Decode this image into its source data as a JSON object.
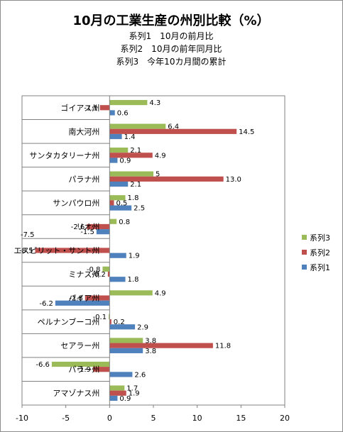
{
  "chart_data": {
    "type": "bar",
    "orientation": "horizontal",
    "title": "10月の工業生産の州別比較（%）",
    "subtitle_lines": [
      "系列1　10月の前月比",
      "系列2　10月の前年同月比",
      "系列3　今年10カ月間の累計"
    ],
    "categories": [
      "ゴイアス州",
      "南大河州",
      "サンタカタリーナ州",
      "パラナ州",
      "サンパウロ州",
      "リオ州",
      "エスピリット・サント州",
      "ミナス州",
      "バイア州",
      "ペルナンブーコ州",
      "セアラー州",
      "パラー州",
      "アマゾナス州"
    ],
    "series": [
      {
        "name": "系列3",
        "color": "#9BBB59",
        "values": [
          4.3,
          6.4,
          2.1,
          5,
          1.8,
          0.8,
          null,
          -0.8,
          4.9,
          -0.1,
          3.8,
          -6.6,
          1.7
        ],
        "labels": [
          "4.3",
          "6.4",
          "2.1",
          "5",
          "1.8",
          "0.8",
          "",
          "-0.8",
          "4.9",
          "-0.1",
          "3.8",
          "-6.6",
          "1.7"
        ]
      },
      {
        "name": "系列2",
        "color": "#C0504D",
        "values": [
          -1.1,
          14.5,
          4.9,
          13.0,
          0.5,
          -2.6,
          -8.5,
          -0.2,
          -2.8,
          0.2,
          11.8,
          -1.9,
          1.9
        ],
        "labels": [
          "-1.1",
          "14.5",
          "4.9",
          "13.0",
          "0.5",
          "-2.6",
          "-8.5",
          "-0.2",
          "-2.8",
          "0.2",
          "11.8",
          "-1.9",
          "1.9"
        ]
      },
      {
        "name": "系列1",
        "color": "#4F81BD",
        "values": [
          0.6,
          1.4,
          0.9,
          2.1,
          2.5,
          -1.5,
          1.9,
          1.8,
          -6.2,
          2.9,
          3.8,
          2.6,
          0.9
        ],
        "labels": [
          "0.6",
          "1.4",
          "0.9",
          "2.1",
          "2.5",
          "-1.5",
          "1.9",
          "1.8",
          "-6.2",
          "2.9",
          "3.8",
          "2.6",
          "0.9"
        ]
      }
    ],
    "extra_labels": [
      {
        "text": "-7.5"
      }
    ],
    "xlim": [
      -10,
      20
    ],
    "x_ticks": [
      -10,
      -5,
      0,
      5,
      10,
      15,
      20
    ],
    "legend": {
      "position": "right",
      "entries": [
        "系列3",
        "系列2",
        "系列1"
      ]
    },
    "grid": false
  }
}
